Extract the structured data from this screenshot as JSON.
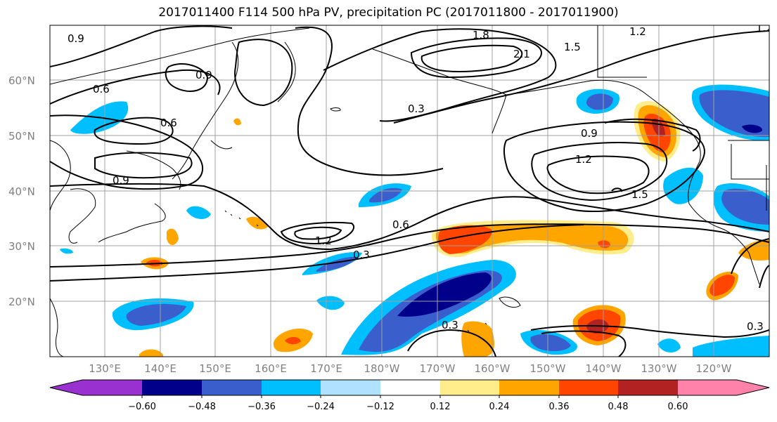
{
  "title": "2017011400 F114 500 hPa PV, precipitation PC (2017011800 - 2017011900)",
  "lat_labels": [
    "60°N",
    "50°N",
    "40°N",
    "30°N",
    "20°N"
  ],
  "lon_labels": [
    "130°E",
    "140°E",
    "150°E",
    "160°E",
    "170°E",
    "180°W",
    "170°W",
    "160°W",
    "150°W",
    "140°W",
    "130°W",
    "120°W"
  ],
  "contour_labels": [
    "0.9",
    "0.6",
    "0.6",
    "0.9",
    "0.9",
    "1.2",
    "0.3",
    "0.6",
    "1.2",
    "0.9",
    "1.2",
    "1.5",
    "1.5",
    "2.1",
    "1.8",
    "1.2",
    "0.3",
    "0.3",
    "0.3"
  ],
  "colorbar": {
    "ticks": [
      "−0.60",
      "−0.48",
      "−0.36",
      "−0.24",
      "−0.12",
      "0.12",
      "0.24",
      "0.36",
      "0.48",
      "0.60"
    ],
    "colors": [
      "#9b30d0",
      "#00008b",
      "#3a5fcd",
      "#00bfff",
      "#b0e2ff",
      "#ffffff",
      "#ffec8b",
      "#ffa500",
      "#ff4500",
      "#b22222",
      "#ff82ab"
    ]
  }
}
